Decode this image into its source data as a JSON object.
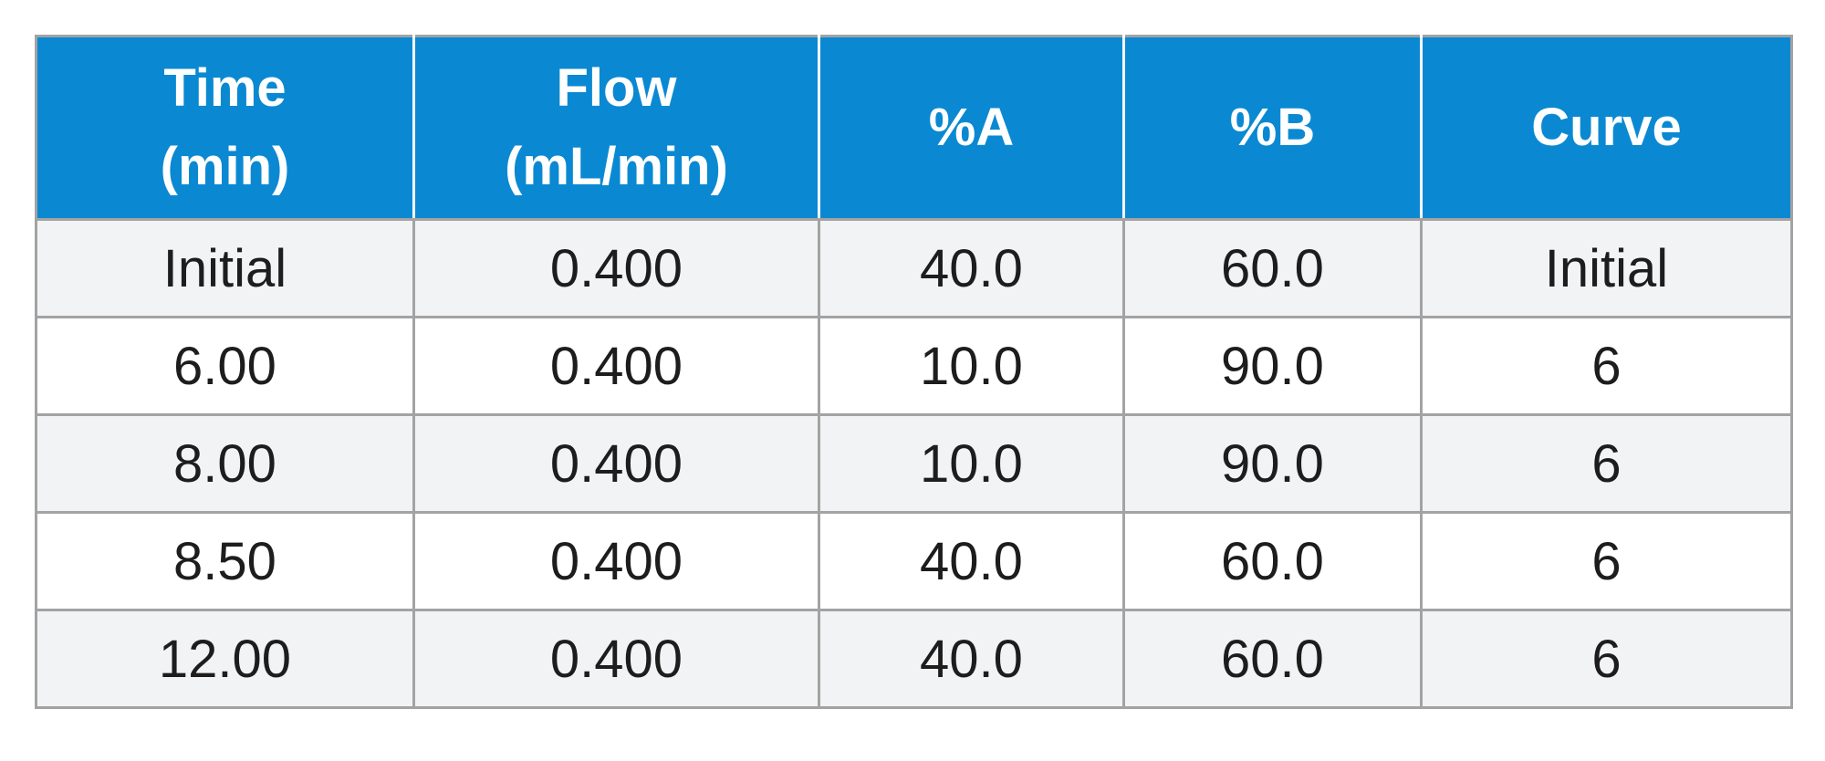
{
  "table": {
    "headers": [
      {
        "line1": "Time",
        "line2": "(min)"
      },
      {
        "line1": "Flow",
        "line2": "(mL/min)"
      },
      {
        "line1": "%A",
        "line2": ""
      },
      {
        "line1": "%B",
        "line2": ""
      },
      {
        "line1": "Curve",
        "line2": ""
      }
    ],
    "rows": [
      [
        "Initial",
        "0.400",
        "40.0",
        "60.0",
        "Initial"
      ],
      [
        "6.00",
        "0.400",
        "10.0",
        "90.0",
        "6"
      ],
      [
        "8.00",
        "0.400",
        "10.0",
        "90.0",
        "6"
      ],
      [
        "8.50",
        "0.400",
        "40.0",
        "60.0",
        "6"
      ],
      [
        "12.00",
        "0.400",
        "40.0",
        "60.0",
        "6"
      ]
    ],
    "colors": {
      "header_bg": "#0a89d2",
      "header_text": "#ffffff",
      "odd_row_bg": "#f2f3f4",
      "even_row_bg": "#ffffff",
      "border": "#a3a3a3",
      "cell_text": "#1d1d1d"
    }
  }
}
